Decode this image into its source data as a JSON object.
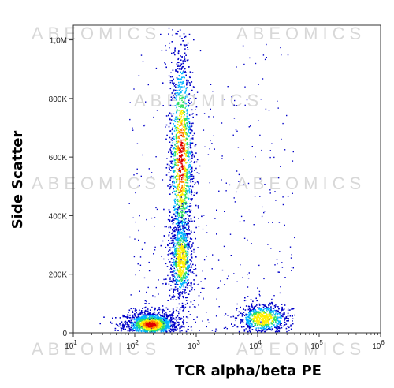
{
  "chart_data": {
    "type": "scatter",
    "subtype": "density-dot-plot",
    "title": "",
    "xlabel": "TCR alpha/beta PE",
    "ylabel": "Side Scatter",
    "x_scale": "log",
    "xlim": [
      10,
      1000000
    ],
    "ylim": [
      0,
      1050000
    ],
    "x_ticks": [
      {
        "value": 10,
        "base": "10",
        "exp": "1"
      },
      {
        "value": 100,
        "base": "10",
        "exp": "2"
      },
      {
        "value": 1000,
        "base": "10",
        "exp": "3"
      },
      {
        "value": 10000,
        "base": "10",
        "exp": "4"
      },
      {
        "value": 100000,
        "base": "10",
        "exp": "5"
      },
      {
        "value": 1000000,
        "base": "10",
        "exp": "6"
      }
    ],
    "y_ticks": [
      {
        "value": 0,
        "label": "0"
      },
      {
        "value": 200000,
        "label": "200K"
      },
      {
        "value": 400000,
        "label": "400K"
      },
      {
        "value": 600000,
        "label": "600K"
      },
      {
        "value": 800000,
        "label": "800K"
      },
      {
        "value": 1000000,
        "label": "1,0M"
      }
    ],
    "grid": false,
    "legend": "none",
    "color_scale": [
      "#0000c8",
      "#00b4ff",
      "#30e060",
      "#fff000",
      "#ff8000",
      "#e00000"
    ],
    "populations": [
      {
        "center_x": 180,
        "center_y": 30000,
        "spread_logx": 0.22,
        "spread_y": 22000,
        "density": "high"
      },
      {
        "center_x": 560,
        "center_y": 600000,
        "spread_logx": 0.1,
        "spread_y": 200000,
        "density": "high"
      },
      {
        "center_x": 560,
        "center_y": 250000,
        "spread_logx": 0.09,
        "spread_y": 70000,
        "density": "medium"
      },
      {
        "center_x": 12000,
        "center_y": 50000,
        "spread_logx": 0.2,
        "spread_y": 25000,
        "density": "medium"
      }
    ],
    "watermark": "ABEOMICS"
  }
}
